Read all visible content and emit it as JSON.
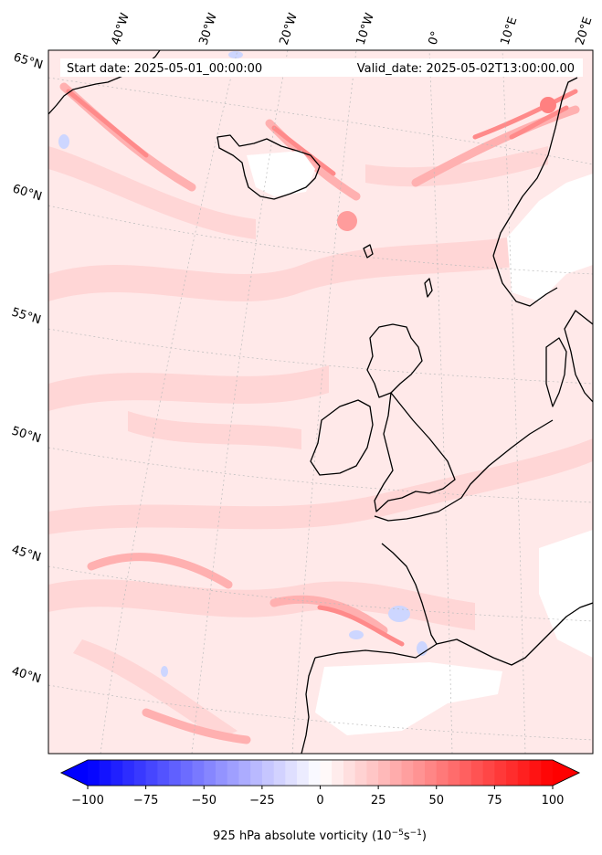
{
  "chart_data": {
    "type": "heatmap",
    "projection": "lambert-conformal",
    "start_label": "Start date: 2025-05-01_00:00:00",
    "valid_label": "Valid_date: 2025-05-02T13:00:00.00",
    "colorbar": {
      "label_prefix": "925 hPa absolute vorticity (10",
      "label_exp1": "−5",
      "label_mid": "s",
      "label_exp2": "−1",
      "label_suffix": ")",
      "min": -100,
      "max": 100,
      "ticks": [
        "−100",
        "−75",
        "−50",
        "−25",
        "0",
        "25",
        "50",
        "75",
        "100"
      ],
      "tick_values": [
        -100,
        -75,
        -50,
        -25,
        0,
        25,
        50,
        75,
        100
      ],
      "colormap": "bwr",
      "extend": "both",
      "low_color": "#0000ff",
      "mid_color": "#ffffff",
      "high_color": "#ff0000"
    },
    "lon_labels": [
      "40°W",
      "30°W",
      "20°W",
      "10°W",
      "0°",
      "10°E",
      "20°E"
    ],
    "lat_labels": [
      "65°N",
      "60°N",
      "55°N",
      "50°N",
      "45°N",
      "40°N"
    ],
    "colors": {
      "background_field": "#ffe6e6",
      "weak_positive": "#ffd2d2",
      "moderate_positive": "#ffaaaa",
      "strong_positive": "#ff7070",
      "negative": "#c8d2ff",
      "coastline": "#000000",
      "gridline": "#bbbbbb"
    }
  }
}
